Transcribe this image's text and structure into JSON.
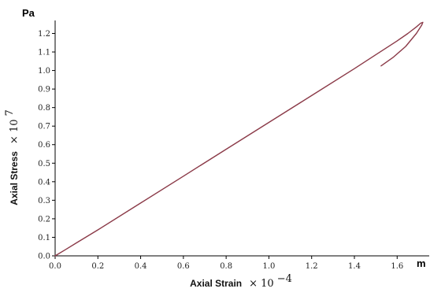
{
  "chart_data": {
    "type": "line",
    "title": "",
    "xlabel": "Axial Strain",
    "xlabel_multiplier": "× 10",
    "xlabel_exponent": "−4",
    "ylabel": "Axial Stress",
    "ylabel_multiplier": "× 10",
    "ylabel_exponent": "7",
    "x_unit": "m",
    "y_unit": "Pa",
    "xlim": [
      0,
      1.75
    ],
    "ylim": [
      0,
      1.27
    ],
    "x_ticks": [
      "0.0",
      "0.2",
      "0.4",
      "0.6",
      "0.8",
      "1.0",
      "1.2",
      "1.4",
      "1.6"
    ],
    "y_ticks": [
      "0.0",
      "0.1",
      "0.2",
      "0.3",
      "0.4",
      "0.5",
      "0.6",
      "0.7",
      "0.8",
      "0.9",
      "1.0",
      "1.1",
      "1.2"
    ],
    "grid": false,
    "line_color": "#8b3a48",
    "series": [
      {
        "x": [
          0.0,
          0.05,
          0.1,
          0.2,
          0.4,
          0.6,
          0.8,
          1.0,
          1.2,
          1.4,
          1.5,
          1.6,
          1.65,
          1.69,
          1.71,
          1.72,
          1.715,
          1.69,
          1.64,
          1.58,
          1.525
        ],
        "y": [
          0.0,
          0.035,
          0.07,
          0.14,
          0.285,
          0.43,
          0.575,
          0.72,
          0.865,
          1.01,
          1.085,
          1.16,
          1.2,
          1.235,
          1.255,
          1.26,
          1.245,
          1.2,
          1.13,
          1.07,
          1.025
        ]
      }
    ]
  }
}
